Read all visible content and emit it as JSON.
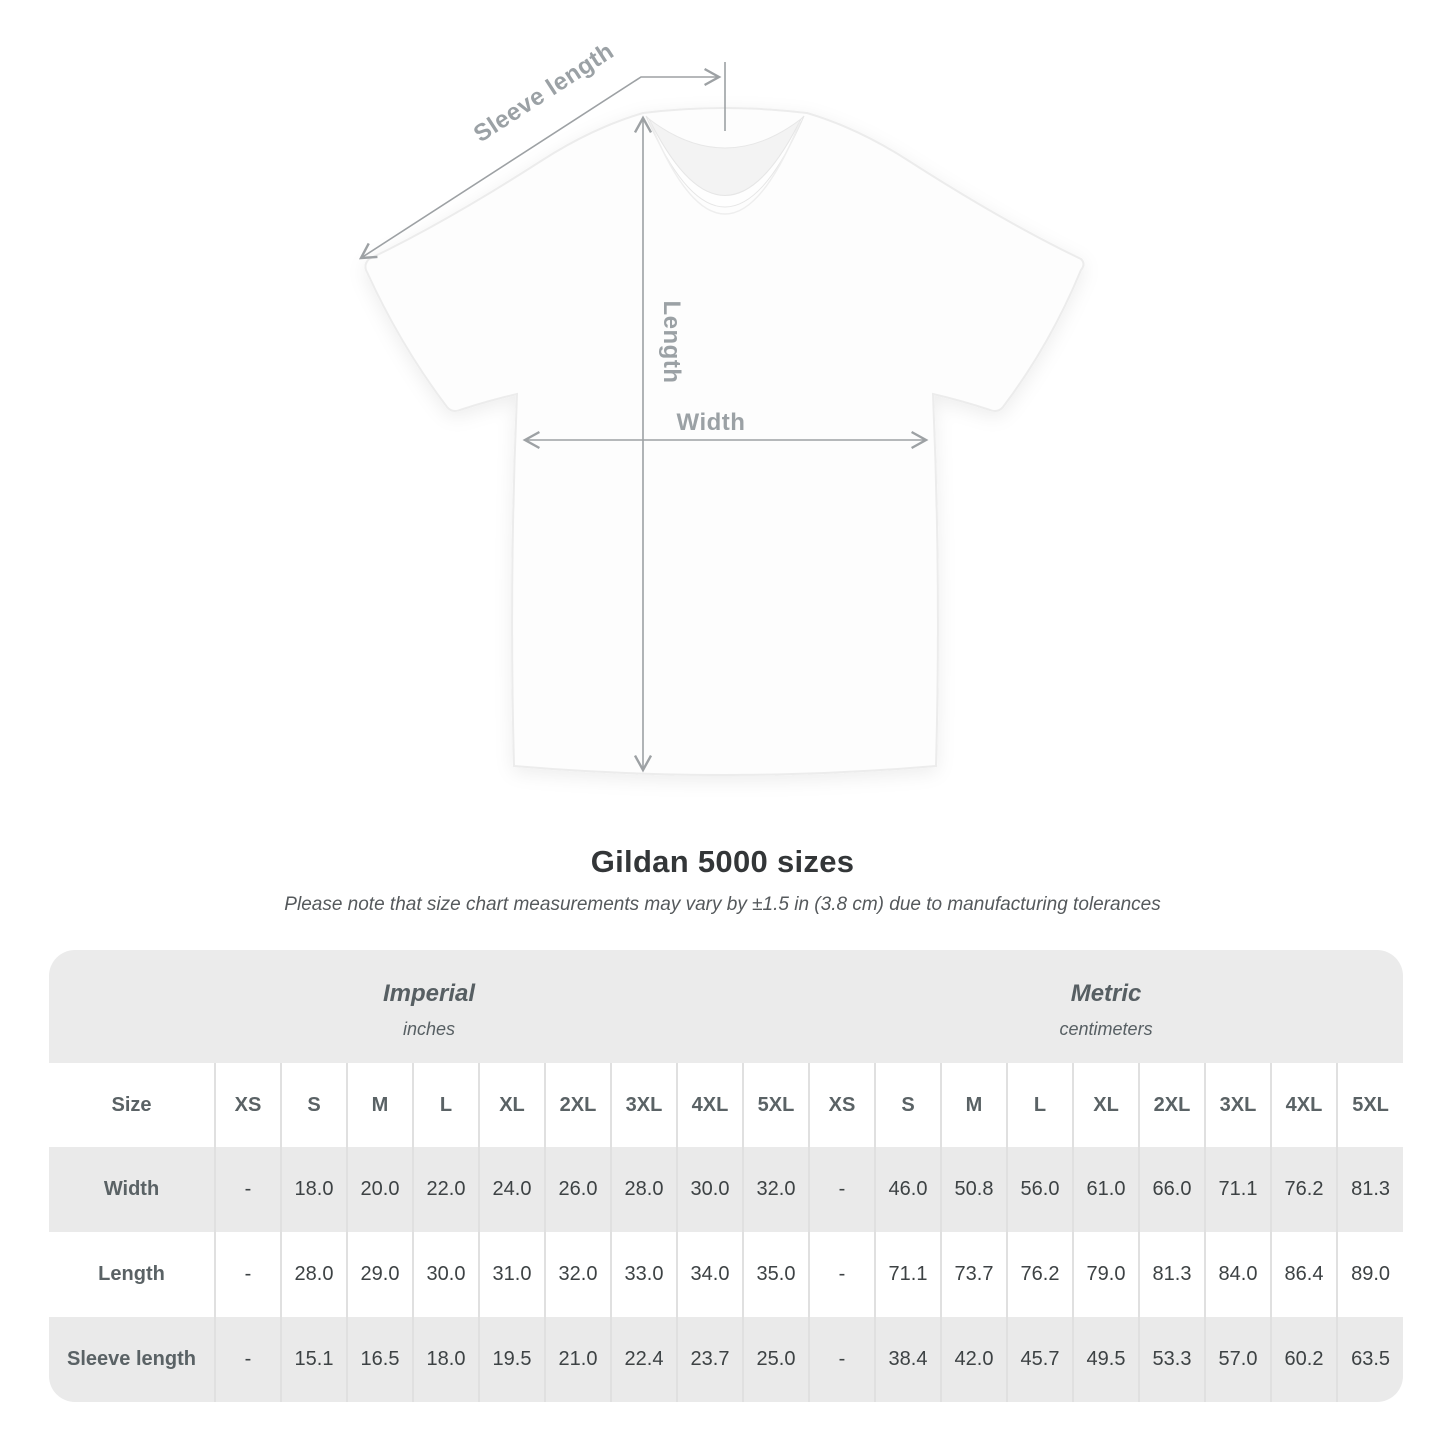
{
  "title": "Gildan 5000 sizes",
  "subtitle": "Please note that size chart measurements may vary by ±1.5 in (3.8 cm) due to manufacturing tolerances",
  "diagram": {
    "sleeve_length_label": "Sleeve length",
    "length_label": "Length",
    "width_label": "Width"
  },
  "table": {
    "unit_sections": [
      {
        "label": "Imperial",
        "sublabel": "inches"
      },
      {
        "label": "Metric",
        "sublabel": "centimeters"
      }
    ],
    "size_column_header": "Size",
    "sizes": [
      "XS",
      "S",
      "M",
      "L",
      "XL",
      "2XL",
      "3XL",
      "4XL",
      "5XL"
    ],
    "rows": [
      {
        "label": "Width",
        "imperial": [
          "-",
          "18.0",
          "20.0",
          "22.0",
          "24.0",
          "26.0",
          "28.0",
          "30.0",
          "32.0"
        ],
        "metric": [
          "-",
          "46.0",
          "50.8",
          "56.0",
          "61.0",
          "66.0",
          "71.1",
          "76.2",
          "81.3"
        ]
      },
      {
        "label": "Length",
        "imperial": [
          "-",
          "28.0",
          "29.0",
          "30.0",
          "31.0",
          "32.0",
          "33.0",
          "34.0",
          "35.0"
        ],
        "metric": [
          "-",
          "71.1",
          "73.7",
          "76.2",
          "79.0",
          "81.3",
          "84.0",
          "86.4",
          "89.0"
        ]
      },
      {
        "label": "Sleeve length",
        "imperial": [
          "-",
          "15.1",
          "16.5",
          "18.0",
          "19.5",
          "21.0",
          "22.4",
          "23.7",
          "25.0"
        ],
        "metric": [
          "-",
          "38.4",
          "42.0",
          "45.7",
          "49.5",
          "53.3",
          "57.0",
          "60.2",
          "63.5"
        ]
      }
    ]
  },
  "colors": {
    "table_band_gray": "#ebebeb",
    "table_alt_row_gray": "#eaeaea",
    "column_separator": "#e0e0e0",
    "header_text_gray": "#5a6265",
    "value_text": "#3d4244",
    "annotation_gray": "#9da1a4"
  }
}
